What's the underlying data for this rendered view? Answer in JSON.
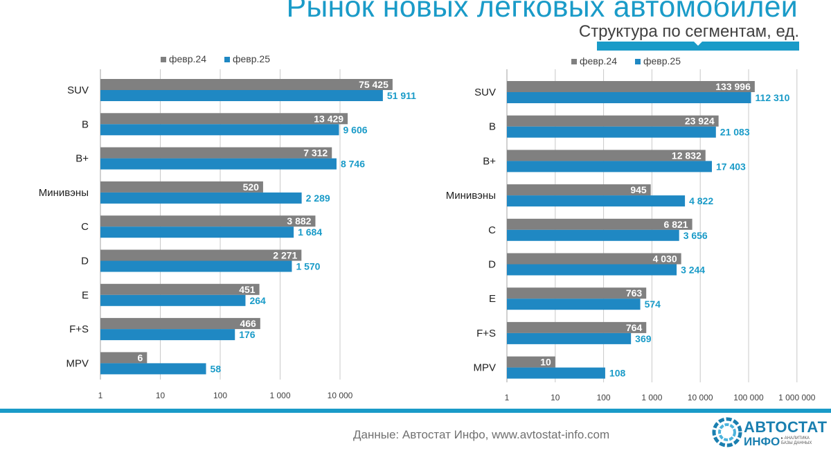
{
  "header": {
    "title": "Рынок новых легковых автомобилей",
    "subtitle": "Структура по сегментам, ед."
  },
  "colors": {
    "accent": "#1a9bc8",
    "series_2024": "#808080",
    "series_2025": "#1f88c3",
    "label_2025": "#1a9bc8"
  },
  "chart_data": [
    {
      "type": "bar",
      "orientation": "horizontal",
      "scale": "log",
      "xlim": [
        1,
        100000
      ],
      "ticks": [
        1,
        10,
        100,
        1000,
        10000
      ],
      "tick_labels": [
        "1",
        "10",
        "100",
        "1 000",
        "10 000"
      ],
      "categories": [
        "SUV",
        "B",
        "B+",
        "Минивэны",
        "C",
        "D",
        "E",
        "F+S",
        "MPV"
      ],
      "series": [
        {
          "name": "февр.24",
          "values": [
            75425,
            13429,
            7312,
            520,
            3882,
            2271,
            451,
            466,
            6
          ],
          "labels": [
            "75 425",
            "13 429",
            "7 312",
            "520",
            "3 882",
            "2 271",
            "451",
            "466",
            "6"
          ]
        },
        {
          "name": "февр.25",
          "values": [
            51911,
            9606,
            8746,
            2289,
            1684,
            1570,
            264,
            176,
            58
          ],
          "labels": [
            "51 911",
            "9 606",
            "8 746",
            "2 289",
            "1 684",
            "1 570",
            "264",
            "176",
            "58"
          ]
        }
      ],
      "legend": "top"
    },
    {
      "type": "bar",
      "orientation": "horizontal",
      "scale": "log",
      "xlim": [
        1,
        1000000
      ],
      "ticks": [
        1,
        10,
        100,
        1000,
        10000,
        100000,
        1000000
      ],
      "tick_labels": [
        "1",
        "10",
        "100",
        "1 000",
        "10 000",
        "100 000",
        "1 000 000"
      ],
      "categories": [
        "SUV",
        "B",
        "B+",
        "Минивэны",
        "C",
        "D",
        "E",
        "F+S",
        "MPV"
      ],
      "series": [
        {
          "name": "февр.24",
          "values": [
            133996,
            23924,
            12832,
            945,
            6821,
            4030,
            763,
            764,
            10
          ],
          "labels": [
            "133 996",
            "23 924",
            "12 832",
            "945",
            "6 821",
            "4 030",
            "763",
            "764",
            "10"
          ]
        },
        {
          "name": "февр.25",
          "values": [
            112310,
            21083,
            17403,
            4822,
            3656,
            3244,
            574,
            369,
            108
          ],
          "labels": [
            "112 310",
            "21 083",
            "17 403",
            "4 822",
            "3 656",
            "3 244",
            "574",
            "369",
            "108"
          ]
        }
      ],
      "legend": "top"
    }
  ],
  "footer": {
    "source": "Данные: Автостат Инфо, www.avtostat-info.com",
    "logo_top": "АВТОСТАТ",
    "logo_bottom": "ИНФО",
    "logo_tagline_1": "▸ АНАЛИТИКА",
    "logo_tagline_2": "БАЗЫ ДАННЫХ"
  }
}
